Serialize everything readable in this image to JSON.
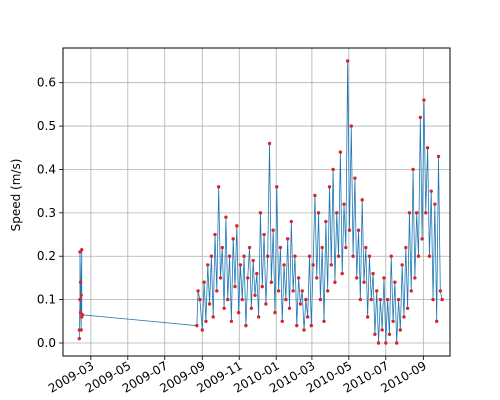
{
  "chart_data": {
    "type": "scatter",
    "title": "",
    "xlabel": "",
    "ylabel": "Speed (m/s)",
    "grid": true,
    "xlim": [
      "2009-01-14",
      "2010-10-15"
    ],
    "ylim": [
      -0.03,
      0.68
    ],
    "x_ticks": [
      "2009-03",
      "2009-05",
      "2009-07",
      "2009-09",
      "2009-11",
      "2010-01",
      "2010-03",
      "2010-05",
      "2010-07",
      "2010-09"
    ],
    "y_ticks": [
      "0.0",
      "0.1",
      "0.2",
      "0.3",
      "0.4",
      "0.5",
      "0.6"
    ],
    "colors": {
      "line": "#1f77b4",
      "marker": "#d62728"
    },
    "series": [
      {
        "points": [
          [
            "2009-02-10",
            0.01
          ],
          [
            "2009-02-10",
            0.03
          ],
          [
            "2009-02-11",
            0.1
          ],
          [
            "2009-02-11",
            0.21
          ],
          [
            "2009-02-12",
            0.14
          ],
          [
            "2009-02-12",
            0.07
          ],
          [
            "2009-02-13",
            0.03
          ],
          [
            "2009-02-13",
            0.11
          ],
          [
            "2009-02-14",
            0.215
          ],
          [
            "2009-02-14",
            0.06
          ],
          [
            "2009-02-15",
            0.065
          ],
          [
            "2009-08-23",
            0.04
          ],
          [
            "2009-08-25",
            0.12
          ],
          [
            "2009-08-28",
            0.1
          ],
          [
            "2009-09-01",
            0.03
          ],
          [
            "2009-09-04",
            0.14
          ],
          [
            "2009-09-07",
            0.05
          ],
          [
            "2009-09-10",
            0.18
          ],
          [
            "2009-09-13",
            0.09
          ],
          [
            "2009-09-16",
            0.2
          ],
          [
            "2009-09-19",
            0.06
          ],
          [
            "2009-09-22",
            0.25
          ],
          [
            "2009-09-25",
            0.12
          ],
          [
            "2009-09-28",
            0.36
          ],
          [
            "2009-10-01",
            0.15
          ],
          [
            "2009-10-04",
            0.22
          ],
          [
            "2009-10-07",
            0.08
          ],
          [
            "2009-10-10",
            0.29
          ],
          [
            "2009-10-13",
            0.1
          ],
          [
            "2009-10-16",
            0.2
          ],
          [
            "2009-10-19",
            0.05
          ],
          [
            "2009-10-22",
            0.24
          ],
          [
            "2009-10-25",
            0.13
          ],
          [
            "2009-10-28",
            0.27
          ],
          [
            "2009-10-31",
            0.07
          ],
          [
            "2009-11-03",
            0.18
          ],
          [
            "2009-11-06",
            0.1
          ],
          [
            "2009-11-09",
            0.2
          ],
          [
            "2009-11-12",
            0.04
          ],
          [
            "2009-11-15",
            0.15
          ],
          [
            "2009-11-18",
            0.22
          ],
          [
            "2009-11-21",
            0.08
          ],
          [
            "2009-11-24",
            0.19
          ],
          [
            "2009-11-27",
            0.11
          ],
          [
            "2009-11-30",
            0.16
          ],
          [
            "2009-12-03",
            0.06
          ],
          [
            "2009-12-06",
            0.3
          ],
          [
            "2009-12-09",
            0.13
          ],
          [
            "2009-12-12",
            0.25
          ],
          [
            "2009-12-15",
            0.09
          ],
          [
            "2009-12-18",
            0.2
          ],
          [
            "2009-12-21",
            0.46
          ],
          [
            "2009-12-24",
            0.14
          ],
          [
            "2009-12-27",
            0.26
          ],
          [
            "2009-12-30",
            0.07
          ],
          [
            "2010-01-02",
            0.36
          ],
          [
            "2010-01-05",
            0.12
          ],
          [
            "2010-01-08",
            0.22
          ],
          [
            "2010-01-11",
            0.05
          ],
          [
            "2010-01-14",
            0.18
          ],
          [
            "2010-01-17",
            0.1
          ],
          [
            "2010-01-20",
            0.24
          ],
          [
            "2010-01-23",
            0.08
          ],
          [
            "2010-01-26",
            0.28
          ],
          [
            "2010-01-29",
            0.12
          ],
          [
            "2010-02-01",
            0.2
          ],
          [
            "2010-02-04",
            0.04
          ],
          [
            "2010-02-07",
            0.15
          ],
          [
            "2010-02-10",
            0.09
          ],
          [
            "2010-02-13",
            0.12
          ],
          [
            "2010-02-16",
            0.03
          ],
          [
            "2010-02-19",
            0.1
          ],
          [
            "2010-02-22",
            0.06
          ],
          [
            "2010-02-25",
            0.2
          ],
          [
            "2010-02-28",
            0.04
          ],
          [
            "2010-03-03",
            0.18
          ],
          [
            "2010-03-06",
            0.34
          ],
          [
            "2010-03-09",
            0.15
          ],
          [
            "2010-03-12",
            0.3
          ],
          [
            "2010-03-15",
            0.1
          ],
          [
            "2010-03-18",
            0.22
          ],
          [
            "2010-03-21",
            0.05
          ],
          [
            "2010-03-24",
            0.28
          ],
          [
            "2010-03-27",
            0.12
          ],
          [
            "2010-03-30",
            0.36
          ],
          [
            "2010-04-02",
            0.18
          ],
          [
            "2010-04-05",
            0.4
          ],
          [
            "2010-04-08",
            0.14
          ],
          [
            "2010-04-11",
            0.3
          ],
          [
            "2010-04-14",
            0.2
          ],
          [
            "2010-04-17",
            0.44
          ],
          [
            "2010-04-20",
            0.16
          ],
          [
            "2010-04-23",
            0.32
          ],
          [
            "2010-04-26",
            0.22
          ],
          [
            "2010-04-29",
            0.65
          ],
          [
            "2010-05-02",
            0.26
          ],
          [
            "2010-05-05",
            0.5
          ],
          [
            "2010-05-08",
            0.2
          ],
          [
            "2010-05-11",
            0.38
          ],
          [
            "2010-05-14",
            0.15
          ],
          [
            "2010-05-17",
            0.26
          ],
          [
            "2010-05-20",
            0.1
          ],
          [
            "2010-05-23",
            0.33
          ],
          [
            "2010-05-26",
            0.14
          ],
          [
            "2010-05-29",
            0.22
          ],
          [
            "2010-06-01",
            0.06
          ],
          [
            "2010-06-04",
            0.2
          ],
          [
            "2010-06-07",
            0.1
          ],
          [
            "2010-06-10",
            0.16
          ],
          [
            "2010-06-13",
            0.02
          ],
          [
            "2010-06-16",
            0.12
          ],
          [
            "2010-06-19",
            0.0
          ],
          [
            "2010-06-22",
            0.1
          ],
          [
            "2010-06-25",
            0.03
          ],
          [
            "2010-06-28",
            0.15
          ],
          [
            "2010-07-01",
            0.0
          ],
          [
            "2010-07-04",
            0.1
          ],
          [
            "2010-07-07",
            0.02
          ],
          [
            "2010-07-10",
            0.2
          ],
          [
            "2010-07-13",
            0.05
          ],
          [
            "2010-07-16",
            0.14
          ],
          [
            "2010-07-19",
            0.0
          ],
          [
            "2010-07-22",
            0.1
          ],
          [
            "2010-07-25",
            0.03
          ],
          [
            "2010-07-28",
            0.18
          ],
          [
            "2010-07-31",
            0.06
          ],
          [
            "2010-08-03",
            0.22
          ],
          [
            "2010-08-06",
            0.08
          ],
          [
            "2010-08-09",
            0.3
          ],
          [
            "2010-08-12",
            0.12
          ],
          [
            "2010-08-15",
            0.4
          ],
          [
            "2010-08-18",
            0.15
          ],
          [
            "2010-08-21",
            0.3
          ],
          [
            "2010-08-24",
            0.2
          ],
          [
            "2010-08-27",
            0.52
          ],
          [
            "2010-08-30",
            0.24
          ],
          [
            "2010-09-02",
            0.56
          ],
          [
            "2010-09-05",
            0.3
          ],
          [
            "2010-09-08",
            0.45
          ],
          [
            "2010-09-11",
            0.2
          ],
          [
            "2010-09-14",
            0.35
          ],
          [
            "2010-09-17",
            0.1
          ],
          [
            "2010-09-20",
            0.32
          ],
          [
            "2010-09-23",
            0.05
          ],
          [
            "2010-09-26",
            0.43
          ],
          [
            "2010-09-29",
            0.12
          ],
          [
            "2010-10-02",
            0.1
          ]
        ]
      }
    ]
  }
}
